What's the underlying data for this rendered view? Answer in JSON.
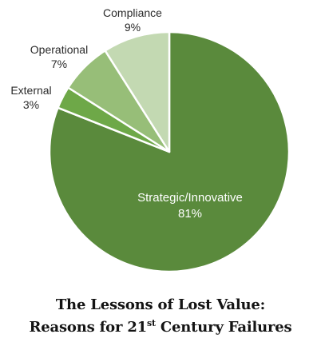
{
  "chart_data": {
    "type": "pie",
    "title": "The Lessons of Lost Value: Reasons for 21st Century Failures",
    "title_parts": {
      "line1": "The Lessons of Lost Value:",
      "line2_prefix": "Reasons for 21",
      "line2_sup": "st",
      "line2_suffix": " Century Failures"
    },
    "start": "12 o'clock, clockwise",
    "slices": [
      {
        "label": "Strategic/Innovative",
        "value": 81,
        "value_label": "81%",
        "color": "#5a8a3c"
      },
      {
        "label": "External",
        "value": 3,
        "value_label": "3%",
        "color": "#6ea848"
      },
      {
        "label": "Operational",
        "value": 7,
        "value_label": "7%",
        "color": "#97be78"
      },
      {
        "label": "Compliance",
        "value": 9,
        "value_label": "9%",
        "color": "#c3d9b2"
      }
    ]
  }
}
